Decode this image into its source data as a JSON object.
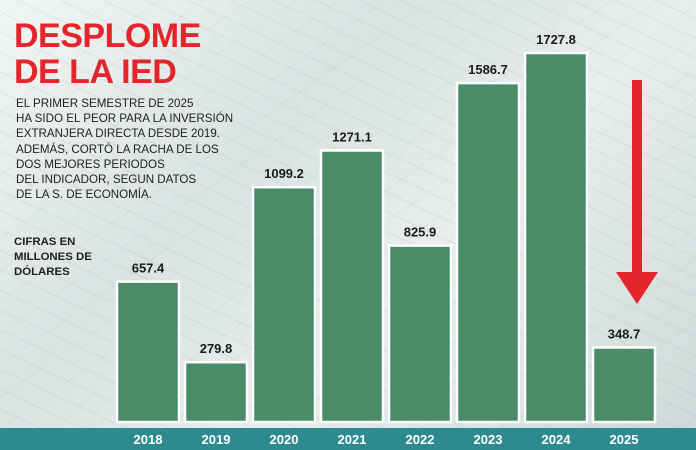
{
  "title_lines": [
    "DESPLOME",
    "DE LA IED"
  ],
  "description_lines": [
    "EL PRIMER SEMESTRE DE 2025",
    "HA SIDO EL PEOR PARA LA INVERSIÓN",
    "EXTRANJERA DIRECTA DESDE 2019.",
    "ADEMÁS, CORTÓ LA RACHA DE LOS",
    "DOS MEJORES PERIODOS",
    "DEL INDICADOR, SEGUN DATOS",
    "DE LA S. DE ECONOMÍA."
  ],
  "units_lines": [
    "CIFRAS EN",
    "MILLONES DE",
    "DÓLARES"
  ],
  "colors": {
    "title": "#e3262b",
    "bar": "#4a8c67",
    "axis_band": "#2f8a90",
    "arrow": "#e3262b"
  },
  "decoration": {
    "arrow_icon": "down-arrow-icon"
  },
  "chart_data": {
    "type": "bar",
    "categories": [
      "2018",
      "2019",
      "2020",
      "2021",
      "2022",
      "2023",
      "2024",
      "2025"
    ],
    "values": [
      657.4,
      279.8,
      1099.2,
      1271.1,
      825.9,
      1586.7,
      1727.8,
      348.7
    ],
    "value_labels": [
      "657.4",
      "279.8",
      "1099.2",
      "1271.1",
      "825.9",
      "1586.7",
      "1727.8",
      "348.7"
    ],
    "title": "DESPLOME DE LA IED",
    "xlabel": "",
    "ylabel": "",
    "grid": false
  }
}
